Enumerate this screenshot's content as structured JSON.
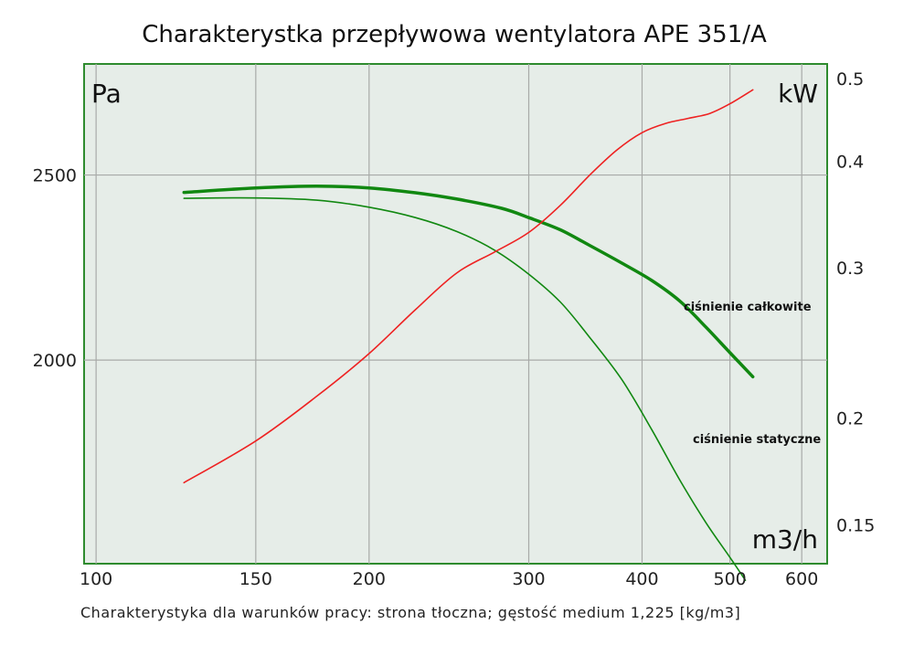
{
  "chart_data": {
    "type": "line",
    "title": "Charakterystka przepływowa wentylatora APE 351/A",
    "footnote": "Charakterystyka dla warunków pracy: strona tłoczna; gęstość medium 1,225 [kg/m3]",
    "xlabel": "m3/h",
    "ylabel_left": "Pa",
    "ylabel_right": "kW",
    "x_scale": "log",
    "xlim": [
      97,
      640
    ],
    "x_ticks": [
      "100",
      "150",
      "200",
      "300",
      "400",
      "500",
      "600"
    ],
    "y_left_lim": [
      1450,
      2800
    ],
    "y_left_ticks": [
      "2000",
      "2500"
    ],
    "y_right_scale": "log",
    "y_right_lim": [
      0.135,
      0.52
    ],
    "y_right_ticks": [
      "0.15",
      "0.2",
      "0.3",
      "0.4",
      "0.5"
    ],
    "grid": true,
    "colors": {
      "plot_background": "#e6ede8",
      "frame": "#2e8b2e",
      "grid": "#a8aaa8",
      "total_pressure": "#118811",
      "static_pressure": "#118811",
      "power": "#ee2222"
    },
    "series": [
      {
        "name": "ciśnienie całkowite",
        "axis": "left",
        "points": [
          [
            125,
            2453
          ],
          [
            150,
            2465
          ],
          [
            175,
            2470
          ],
          [
            200,
            2465
          ],
          [
            225,
            2452
          ],
          [
            250,
            2435
          ],
          [
            280,
            2410
          ],
          [
            300,
            2385
          ],
          [
            325,
            2352
          ],
          [
            350,
            2310
          ],
          [
            380,
            2262
          ],
          [
            410,
            2215
          ],
          [
            440,
            2160
          ],
          [
            470,
            2090
          ],
          [
            500,
            2020
          ],
          [
            530,
            1955
          ]
        ]
      },
      {
        "name": "ciśnienie statyczne",
        "axis": "left",
        "points": [
          [
            125,
            2437
          ],
          [
            150,
            2438
          ],
          [
            175,
            2432
          ],
          [
            200,
            2413
          ],
          [
            225,
            2385
          ],
          [
            250,
            2347
          ],
          [
            275,
            2297
          ],
          [
            300,
            2232
          ],
          [
            325,
            2157
          ],
          [
            350,
            2062
          ],
          [
            380,
            1947
          ],
          [
            410,
            1812
          ],
          [
            440,
            1677
          ],
          [
            470,
            1562
          ],
          [
            500,
            1467
          ],
          [
            520,
            1405
          ]
        ]
      },
      {
        "axis": "right",
        "points": [
          [
            125,
            0.168
          ],
          [
            150,
            0.188
          ],
          [
            175,
            0.212
          ],
          [
            200,
            0.238
          ],
          [
            225,
            0.268
          ],
          [
            250,
            0.296
          ],
          [
            275,
            0.313
          ],
          [
            300,
            0.33
          ],
          [
            325,
            0.355
          ],
          [
            350,
            0.385
          ],
          [
            375,
            0.412
          ],
          [
            400,
            0.432
          ],
          [
            425,
            0.443
          ],
          [
            450,
            0.449
          ],
          [
            475,
            0.455
          ],
          [
            500,
            0.467
          ],
          [
            530,
            0.485
          ]
        ]
      }
    ]
  }
}
